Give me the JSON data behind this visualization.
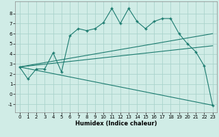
{
  "xlabel": "Humidex (Indice chaleur)",
  "bg_color": "#d0ece6",
  "grid_color": "#aad4cc",
  "line_color": "#1a7a6e",
  "xlim": [
    -0.5,
    23.5
  ],
  "ylim": [
    -1.8,
    9.2
  ],
  "yticks": [
    -1,
    0,
    1,
    2,
    3,
    4,
    5,
    6,
    7,
    8
  ],
  "xticks": [
    0,
    1,
    2,
    3,
    4,
    5,
    6,
    7,
    8,
    9,
    10,
    11,
    12,
    13,
    14,
    15,
    16,
    17,
    18,
    19,
    20,
    21,
    22,
    23
  ],
  "main_x": [
    0,
    1,
    2,
    3,
    4,
    5,
    6,
    7,
    8,
    9,
    10,
    11,
    12,
    13,
    14,
    15,
    16,
    17,
    18,
    19,
    20,
    21,
    22,
    23
  ],
  "main_y": [
    2.7,
    1.5,
    2.5,
    2.5,
    4.1,
    2.2,
    5.8,
    6.5,
    6.3,
    6.5,
    7.1,
    8.5,
    7.0,
    8.5,
    7.2,
    6.5,
    7.2,
    7.5,
    7.5,
    6.0,
    5.0,
    4.2,
    2.8,
    -1.1
  ],
  "line1_x": [
    0,
    23
  ],
  "line1_y": [
    2.7,
    6.0
  ],
  "line2_x": [
    0,
    23
  ],
  "line2_y": [
    2.7,
    4.8
  ],
  "line3_x": [
    0,
    23
  ],
  "line3_y": [
    2.7,
    -1.1
  ],
  "tick_fontsize": 5.0,
  "xlabel_fontsize": 6.0
}
